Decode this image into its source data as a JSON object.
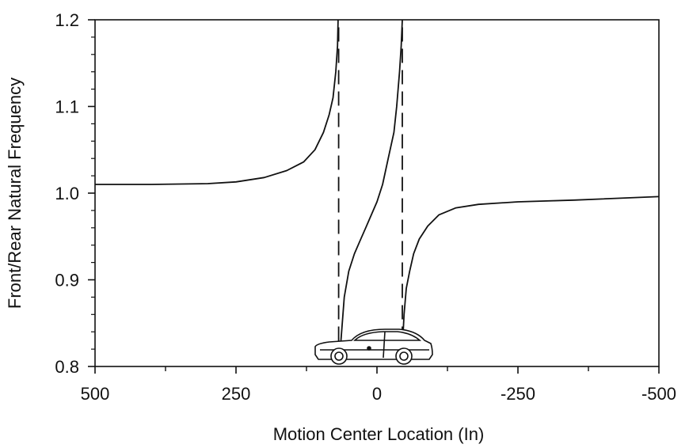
{
  "chart_data": {
    "type": "line",
    "title": "",
    "xlabel": "Motion Center Location (In)",
    "ylabel": "Front/Rear Natural Frequency",
    "xlim": [
      500,
      -500
    ],
    "ylim": [
      0.8,
      1.2
    ],
    "x_ticks": [
      500,
      250,
      0,
      -250,
      -500
    ],
    "x_tick_labels": [
      "500",
      "250",
      "0",
      "-250",
      "-500"
    ],
    "y_ticks": [
      0.8,
      0.9,
      1.0,
      1.1,
      1.2
    ],
    "y_tick_labels": [
      "0.8",
      "0.9",
      "1.0",
      "1.1",
      "1.2"
    ],
    "grid": false,
    "series": [
      {
        "style": "solid",
        "x": [
          500,
          400,
          300,
          250,
          200,
          160,
          130,
          110,
          95,
          85,
          78,
          73,
          70,
          69
        ],
        "y": [
          1.01,
          1.01,
          1.011,
          1.013,
          1.018,
          1.026,
          1.036,
          1.05,
          1.07,
          1.09,
          1.11,
          1.14,
          1.17,
          1.2
        ]
      },
      {
        "style": "solid",
        "x": [
          65,
          58,
          50,
          40,
          30,
          20,
          10,
          0,
          -10,
          -20,
          -30,
          -35,
          -40,
          -43,
          -45
        ],
        "y": [
          0.82,
          0.88,
          0.91,
          0.93,
          0.945,
          0.96,
          0.975,
          0.99,
          1.01,
          1.04,
          1.07,
          1.1,
          1.14,
          1.17,
          1.2
        ]
      },
      {
        "style": "solid",
        "x": [
          -45,
          -48,
          -52,
          -58,
          -65,
          -75,
          -90,
          -110,
          -140,
          -180,
          -250,
          -350,
          -500
        ],
        "y": [
          0.82,
          0.86,
          0.89,
          0.91,
          0.93,
          0.947,
          0.962,
          0.975,
          0.983,
          0.987,
          0.99,
          0.992,
          0.996
        ]
      },
      {
        "style": "dashed",
        "x": [
          68,
          68
        ],
        "y": [
          0.805,
          1.2
        ]
      },
      {
        "style": "dashed",
        "x": [
          -45,
          -45
        ],
        "y": [
          0.805,
          1.2
        ]
      }
    ],
    "annotations": [
      {
        "type": "car-illustration",
        "x_range": [
          90,
          -85
        ]
      }
    ]
  }
}
